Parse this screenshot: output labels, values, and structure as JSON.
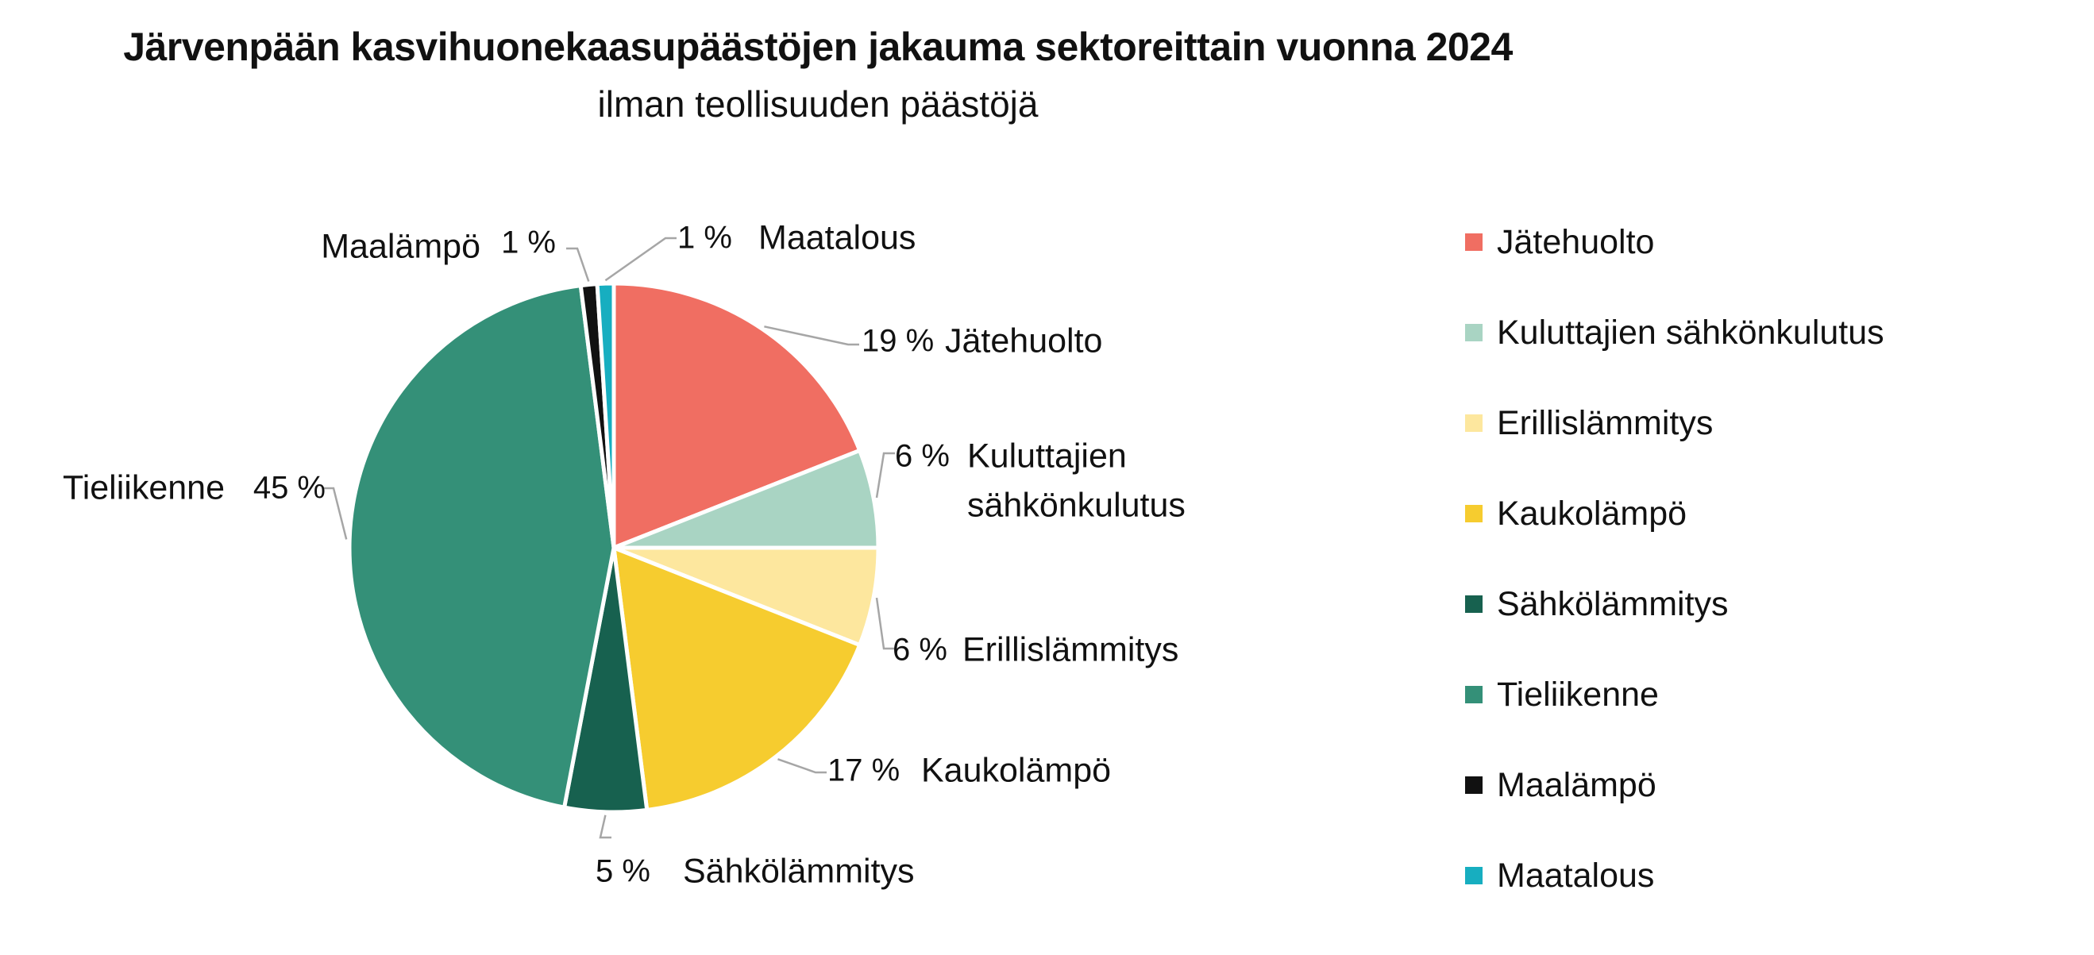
{
  "chart_data": {
    "type": "pie",
    "title": "Järvenpään kasvihuonekaasupäästöjen jakauma sektoreittain vuonna 2024",
    "subtitle": "ilman teollisuuden päästöjä",
    "legend_position": "right",
    "slices": [
      {
        "label": "Jätehuolto",
        "value": 19,
        "value_label": "19 %",
        "color": "#f06e62"
      },
      {
        "label": "Kuluttajien sähkönkulutus",
        "value": 6,
        "value_label": "6 %",
        "color": "#a9d4c3",
        "label_lines": [
          "Kuluttajien",
          "sähkönkulutus"
        ]
      },
      {
        "label": "Erillislämmitys",
        "value": 6,
        "value_label": "6 %",
        "color": "#fde79e"
      },
      {
        "label": "Kaukolämpö",
        "value": 17,
        "value_label": "17 %",
        "color": "#f6cc2f"
      },
      {
        "label": "Sähkölämmitys",
        "value": 5,
        "value_label": "5 %",
        "color": "#17614f"
      },
      {
        "label": "Tieliikenne",
        "value": 45,
        "value_label": "45 %",
        "color": "#349078"
      },
      {
        "label": "Maalämpö",
        "value": 1,
        "value_label": "1 %",
        "color": "#111111"
      },
      {
        "label": "Maatalous",
        "value": 1,
        "value_label": "1 %",
        "color": "#17aec0"
      }
    ]
  }
}
